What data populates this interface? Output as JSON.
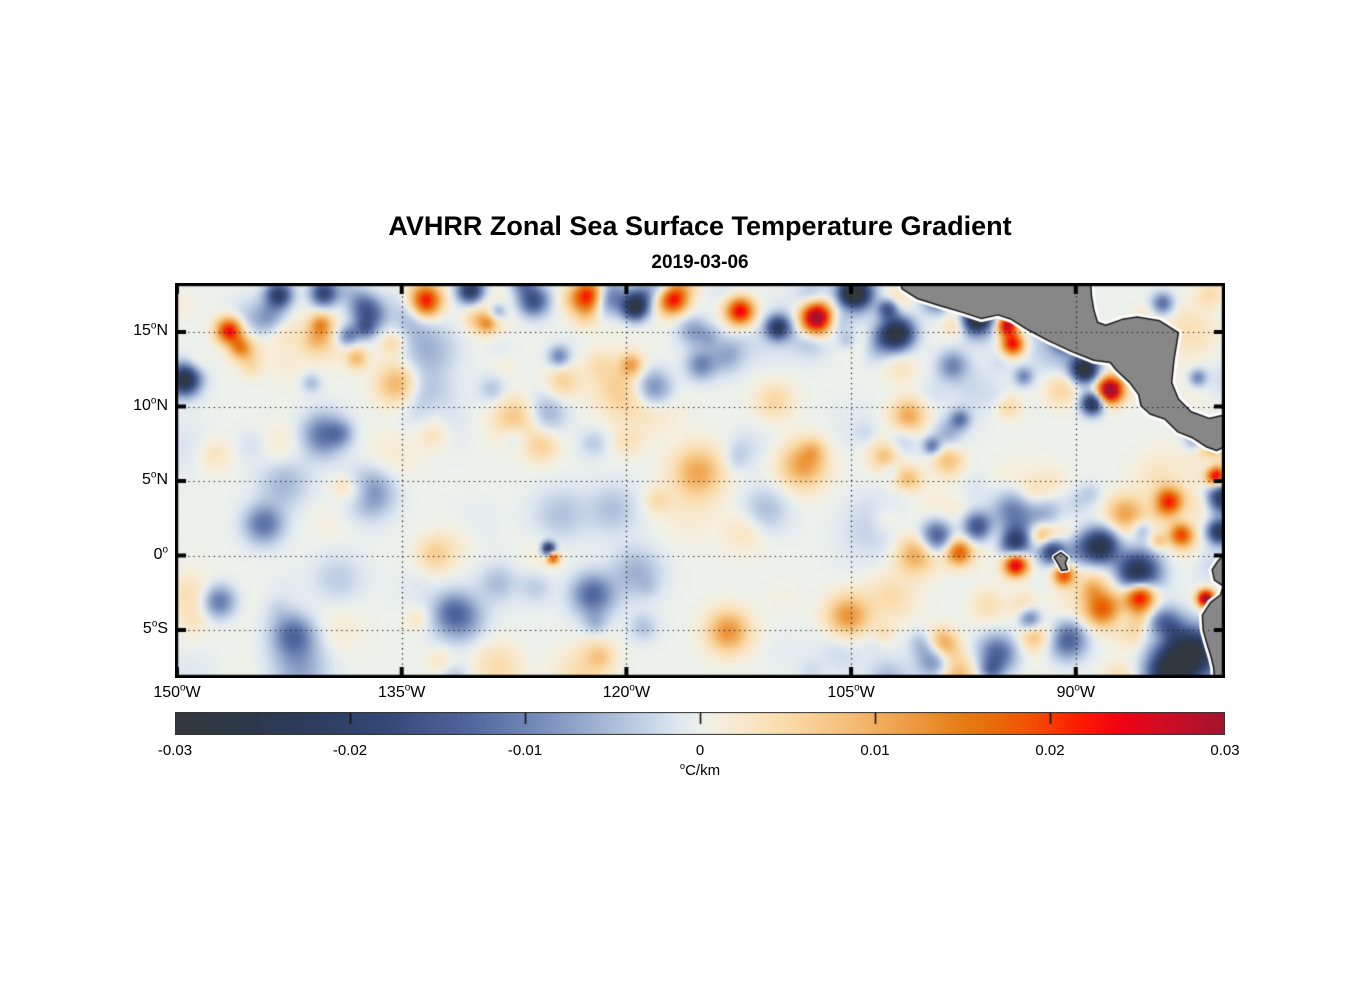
{
  "title": "AVHRR Zonal Sea Surface Temperature Gradient",
  "subtitle": "2019-03-06",
  "chart_data": {
    "type": "heatmap",
    "title": "AVHRR Zonal Sea Surface Temperature Gradient",
    "subtitle": "2019-03-06",
    "variable": "zonal sea surface temperature gradient",
    "deg_symbol": "o",
    "units_text": "C/km",
    "lon_range_deg": [
      -150,
      -79.9
    ],
    "lat_range_deg": [
      -8.2,
      18.3
    ],
    "grid": {
      "style": "dotted",
      "lat_lines": [
        15,
        10,
        5,
        0,
        -5
      ],
      "lon_lines": [
        -135,
        -120,
        -105,
        -90
      ]
    },
    "lat_ticks": [
      {
        "value": 15,
        "num": "15",
        "hemi": "N"
      },
      {
        "value": 10,
        "num": "10",
        "hemi": "N"
      },
      {
        "value": 5,
        "num": "5",
        "hemi": "N"
      },
      {
        "value": 0,
        "num": "0",
        "hemi": ""
      },
      {
        "value": -5,
        "num": "5",
        "hemi": "S"
      }
    ],
    "lon_ticks": [
      {
        "value": -150,
        "num": "150",
        "hemi": "W"
      },
      {
        "value": -135,
        "num": "135",
        "hemi": "W"
      },
      {
        "value": -120,
        "num": "120",
        "hemi": "W"
      },
      {
        "value": -105,
        "num": "105",
        "hemi": "W"
      },
      {
        "value": -90,
        "num": "90",
        "hemi": "W"
      }
    ],
    "colorbar": {
      "min": -0.03,
      "max": 0.03,
      "tick_values": [
        -0.03,
        -0.02,
        -0.01,
        0,
        0.01,
        0.02,
        0.03
      ],
      "tick_labels": [
        "-0.03",
        "-0.02",
        "-0.01",
        "0",
        "0.01",
        "0.02",
        "0.03"
      ],
      "inner_tick_values": [
        -0.02,
        -0.01,
        0,
        0.01,
        0.02
      ]
    },
    "colormap": [
      [
        0.0,
        "#33383e"
      ],
      [
        0.06,
        "#2e3849"
      ],
      [
        0.13,
        "#2d3c5e"
      ],
      [
        0.2,
        "#354977"
      ],
      [
        0.28,
        "#50669d"
      ],
      [
        0.34,
        "#7289b7"
      ],
      [
        0.4,
        "#9fb2d2"
      ],
      [
        0.45,
        "#c6d4e8"
      ],
      [
        0.48,
        "#e0e8f1"
      ],
      [
        0.5,
        "#ecf1ec"
      ],
      [
        0.52,
        "#f6eedd"
      ],
      [
        0.56,
        "#fae3bd"
      ],
      [
        0.6,
        "#f9d49c"
      ],
      [
        0.65,
        "#f4ba71"
      ],
      [
        0.7,
        "#ee9c44"
      ],
      [
        0.75,
        "#e57d14"
      ],
      [
        0.78,
        "#e96c09"
      ],
      [
        0.82,
        "#f44c04"
      ],
      [
        0.86,
        "#fd1d01"
      ],
      [
        0.9,
        "#f20313"
      ],
      [
        0.94,
        "#d30d24"
      ],
      [
        1.0,
        "#a4142e"
      ]
    ],
    "colors": {
      "land": "#878787",
      "coastline": "#1a1a1a",
      "coast_fringe": "#ffffff",
      "frame": "#000000",
      "gridline": "#1a1a1a",
      "background": "#ffffff"
    },
    "features": [
      {
        "name": "tehuantepec-jet-core",
        "lon": -94.6,
        "lat": 15.5,
        "v": 0.035,
        "s": 0.5
      },
      {
        "name": "tehuantepec-jet-tail",
        "lon": -94.2,
        "lat": 14.2,
        "v": 0.026,
        "s": 0.55
      },
      {
        "name": "tehuantepec-navy-west",
        "lon": -96.6,
        "lat": 15.9,
        "v": -0.027,
        "s": 0.55
      },
      {
        "name": "mexico-coast-navy",
        "lon": -101.9,
        "lat": 14.9,
        "v": -0.029,
        "s": 0.75
      },
      {
        "name": "mexico-coast-navy2",
        "lon": -102.5,
        "lat": 16.6,
        "v": -0.022,
        "s": 0.5
      },
      {
        "name": "oaxaca-orange",
        "lon": -98.0,
        "lat": 17.4,
        "v": 0.02,
        "s": 0.5
      },
      {
        "name": "papagayo-core",
        "lon": -87.7,
        "lat": 11.1,
        "v": 0.036,
        "s": 0.6
      },
      {
        "name": "papagayo-navy-nw",
        "lon": -89.4,
        "lat": 12.5,
        "v": -0.031,
        "s": 0.6
      },
      {
        "name": "papagayo-navy-s",
        "lon": -88.9,
        "lat": 10.2,
        "v": -0.026,
        "s": 0.5
      },
      {
        "name": "guatemala-navy",
        "lon": -90.7,
        "lat": 14.7,
        "v": -0.027,
        "s": 0.55
      },
      {
        "name": "guatemala-orange",
        "lon": -91.1,
        "lat": 15.2,
        "v": 0.024,
        "s": 0.35
      },
      {
        "name": "top-navy-104",
        "lon": -104.6,
        "lat": 17.6,
        "v": -0.025,
        "s": 0.65
      },
      {
        "name": "top-orange-107",
        "lon": -107.4,
        "lat": 15.9,
        "v": 0.028,
        "s": 0.75
      },
      {
        "name": "top-navy-110",
        "lon": -109.9,
        "lat": 15.3,
        "v": -0.021,
        "s": 0.55
      },
      {
        "name": "top-orange-112",
        "lon": -112.4,
        "lat": 16.4,
        "v": 0.026,
        "s": 0.65
      },
      {
        "name": "top-orange-117",
        "lon": -116.9,
        "lat": 17.2,
        "v": 0.027,
        "s": 0.7
      },
      {
        "name": "top-navy-119",
        "lon": -119.4,
        "lat": 16.7,
        "v": -0.028,
        "s": 0.6
      },
      {
        "name": "top-orange-122",
        "lon": -122.4,
        "lat": 17.4,
        "v": 0.029,
        "s": 0.75
      },
      {
        "name": "top-navy-126",
        "lon": -126.2,
        "lat": 17.1,
        "v": -0.017,
        "s": 0.7
      },
      {
        "name": "top-navy-130",
        "lon": -130.4,
        "lat": 17.8,
        "v": -0.023,
        "s": 0.6
      },
      {
        "name": "top-orange-133",
        "lon": -133.5,
        "lat": 17.1,
        "v": 0.028,
        "s": 0.75
      },
      {
        "name": "top-navy-137",
        "lon": -137.2,
        "lat": 16.2,
        "v": -0.015,
        "s": 0.8
      },
      {
        "name": "top-navy-140",
        "lon": -140.2,
        "lat": 17.6,
        "v": -0.019,
        "s": 0.6
      },
      {
        "name": "top-navy-143",
        "lon": -143.2,
        "lat": 17.5,
        "v": -0.021,
        "s": 0.6
      },
      {
        "name": "top-orange-146",
        "lon": -146.5,
        "lat": 15.1,
        "v": 0.025,
        "s": 0.6
      },
      {
        "name": "left-edge-navy",
        "lon": -149.5,
        "lat": 11.8,
        "v": -0.028,
        "s": 0.7
      },
      {
        "name": "tiw-navy-99",
        "lon": -99.2,
        "lat": 1.3,
        "v": -0.02,
        "s": 0.8
      },
      {
        "name": "tiw-navy-96",
        "lon": -96.6,
        "lat": 1.9,
        "v": -0.018,
        "s": 0.7
      },
      {
        "name": "tiw-navy-94",
        "lon": -94.1,
        "lat": 0.9,
        "v": -0.022,
        "s": 0.75
      },
      {
        "name": "tiw-navy-91",
        "lon": -91.6,
        "lat": 0.3,
        "v": -0.02,
        "s": 0.6
      },
      {
        "name": "tiw-navy-88",
        "lon": -88.3,
        "lat": 0.6,
        "v": -0.026,
        "s": 0.8
      },
      {
        "name": "tiw-navy-86",
        "lon": -85.9,
        "lat": -1.2,
        "v": -0.028,
        "s": 1.0
      },
      {
        "name": "tiw-orange-97",
        "lon": -97.8,
        "lat": 0.2,
        "v": 0.016,
        "s": 0.6
      },
      {
        "name": "eq-red-94",
        "lon": -94.0,
        "lat": -0.6,
        "v": 0.029,
        "s": 0.55
      },
      {
        "name": "eq-orange-91",
        "lon": -90.8,
        "lat": -1.3,
        "v": 0.02,
        "s": 0.5
      },
      {
        "name": "eq-navy-spot",
        "lon": -125.2,
        "lat": 0.45,
        "v": -0.027,
        "s": 0.3
      },
      {
        "name": "eq-orange-spot",
        "lon": -124.9,
        "lat": -0.15,
        "v": 0.021,
        "s": 0.28
      },
      {
        "name": "guayaquil-red",
        "lon": -81.3,
        "lat": -2.9,
        "v": 0.035,
        "s": 0.4
      },
      {
        "name": "peru-coast-navy",
        "lon": -82.1,
        "lat": -6.6,
        "v": -0.031,
        "s": 1.15
      },
      {
        "name": "peru-coast-navy2",
        "lon": -83.8,
        "lat": -7.8,
        "v": -0.027,
        "s": 1.0
      },
      {
        "name": "peru-offshore-navy",
        "lon": -84.2,
        "lat": -4.9,
        "v": -0.02,
        "s": 0.9
      },
      {
        "name": "colombia-coast-navy",
        "lon": -80.3,
        "lat": 3.9,
        "v": -0.029,
        "s": 0.75
      },
      {
        "name": "ecuador-coast-navy",
        "lon": -80.4,
        "lat": 1.6,
        "v": -0.025,
        "s": 0.55
      },
      {
        "name": "colombia-offshore-orange",
        "lon": -83.8,
        "lat": 3.6,
        "v": 0.023,
        "s": 0.65
      },
      {
        "name": "ecuador-offshore-orange",
        "lon": -83.0,
        "lat": 1.4,
        "v": 0.018,
        "s": 0.55
      },
      {
        "name": "panama-coast-orange",
        "lon": -80.6,
        "lat": 5.3,
        "v": 0.027,
        "s": 0.45
      },
      {
        "name": "galapagos-orange",
        "lon": -85.7,
        "lat": -2.6,
        "v": 0.02,
        "s": 0.65
      },
      {
        "name": "south-orange-88",
        "lon": -88.2,
        "lat": -3.6,
        "v": 0.016,
        "s": 0.8
      },
      {
        "name": "south-navy-90",
        "lon": -90.6,
        "lat": -5.6,
        "v": -0.016,
        "s": 0.9
      },
      {
        "name": "south-navy-95",
        "lon": -95.2,
        "lat": -6.6,
        "v": -0.014,
        "s": 0.9
      },
      {
        "name": "caribbean-navy",
        "lon": -84.2,
        "lat": 16.9,
        "v": -0.013,
        "s": 0.5
      },
      {
        "name": "mid-orange-135",
        "lon": -135.2,
        "lat": 11.5,
        "v": 0.012,
        "s": 1.0
      },
      {
        "name": "mid-orange-127",
        "lon": -127.2,
        "lat": 9.2,
        "v": 0.012,
        "s": 1.1
      },
      {
        "name": "mid-navy-118",
        "lon": -118.2,
        "lat": 11.2,
        "v": -0.013,
        "s": 0.9
      },
      {
        "name": "mid-navy-140",
        "lon": -140.2,
        "lat": 8.1,
        "v": -0.012,
        "s": 1.0
      },
      {
        "name": "mid-navy-137",
        "lon": -137.2,
        "lat": 4.2,
        "v": -0.011,
        "s": 1.1
      },
      {
        "name": "mid-navy-144",
        "lon": -144.2,
        "lat": 2.1,
        "v": -0.012,
        "s": 0.9
      },
      {
        "name": "sw-navy-147",
        "lon": -147.2,
        "lat": -3.1,
        "v": -0.014,
        "s": 0.8
      },
      {
        "name": "sw-navy-142",
        "lon": -142.2,
        "lat": -5.3,
        "v": -0.013,
        "s": 1.0
      },
      {
        "name": "s-navy-131",
        "lon": -131.2,
        "lat": -4.1,
        "v": -0.012,
        "s": 1.1
      },
      {
        "name": "s-navy-122",
        "lon": -122.2,
        "lat": -2.7,
        "v": -0.012,
        "s": 1.0
      },
      {
        "name": "s-orange-113",
        "lon": -113.2,
        "lat": -5.1,
        "v": 0.013,
        "s": 1.0
      },
      {
        "name": "s-orange-105",
        "lon": -105.2,
        "lat": -4.1,
        "v": 0.013,
        "s": 1.0
      },
      {
        "name": "s-navy-99",
        "lon": -99.2,
        "lat": -7.1,
        "v": -0.013,
        "s": 0.9
      },
      {
        "name": "mid-orange-108",
        "lon": -108.2,
        "lat": 6.1,
        "v": 0.012,
        "s": 1.1
      },
      {
        "name": "mid-orange-115",
        "lon": -115.2,
        "lat": 5.6,
        "v": 0.011,
        "s": 1.2
      }
    ],
    "noise": {
      "seed": 20190306,
      "layers": [
        {
          "n": 170,
          "amp": 0.0065,
          "sigma": [
            0.45,
            1.4
          ],
          "lon": [
            -150.4,
            -79.8
          ],
          "lat": [
            -8.4,
            18.4
          ]
        },
        {
          "n": 60,
          "amp": 0.011,
          "sigma": [
            0.4,
            0.9
          ],
          "lon": [
            -150.4,
            -95.0
          ],
          "lat": [
            12.5,
            18.4
          ]
        },
        {
          "n": 55,
          "amp": 0.012,
          "sigma": [
            0.4,
            1.0
          ],
          "lon": [
            -103.0,
            -79.8
          ],
          "lat": [
            -8.4,
            13.0
          ]
        }
      ]
    },
    "land": {
      "central_america": [
        [
          -101.9,
          19.0
        ],
        [
          -101.6,
          17.9
        ],
        [
          -100.6,
          17.25
        ],
        [
          -99.0,
          16.75
        ],
        [
          -97.5,
          16.3
        ],
        [
          -96.3,
          15.9
        ],
        [
          -95.2,
          16.15
        ],
        [
          -94.3,
          15.85
        ],
        [
          -93.2,
          15.15
        ],
        [
          -91.8,
          14.4
        ],
        [
          -90.3,
          13.7
        ],
        [
          -88.8,
          13.1
        ],
        [
          -87.7,
          12.95
        ],
        [
          -87.3,
          12.45
        ],
        [
          -86.4,
          11.6
        ],
        [
          -85.8,
          10.8
        ],
        [
          -85.65,
          10.05
        ],
        [
          -85.05,
          9.5
        ],
        [
          -84.05,
          9.15
        ],
        [
          -83.2,
          8.3
        ],
        [
          -82.2,
          7.9
        ],
        [
          -81.3,
          7.3
        ],
        [
          -80.6,
          7.05
        ],
        [
          -79.4,
          7.6
        ],
        [
          -79.4,
          9.6
        ],
        [
          -81.1,
          9.2
        ],
        [
          -82.3,
          9.65
        ],
        [
          -83.15,
          10.5
        ],
        [
          -83.6,
          11.6
        ],
        [
          -83.45,
          13.1
        ],
        [
          -83.15,
          14.95
        ],
        [
          -84.4,
          15.75
        ],
        [
          -85.9,
          16.0
        ],
        [
          -86.9,
          15.85
        ],
        [
          -88.0,
          15.45
        ],
        [
          -88.55,
          15.65
        ],
        [
          -88.8,
          16.5
        ],
        [
          -88.95,
          17.4
        ],
        [
          -89.05,
          19.0
        ]
      ],
      "south_america": [
        [
          -79.4,
          0.4
        ],
        [
          -80.1,
          0.05
        ],
        [
          -80.5,
          -0.35
        ],
        [
          -80.9,
          -0.95
        ],
        [
          -80.75,
          -1.65
        ],
        [
          -80.15,
          -2.05
        ],
        [
          -80.35,
          -2.65
        ],
        [
          -81.0,
          -3.15
        ],
        [
          -81.55,
          -4.0
        ],
        [
          -81.5,
          -5.0
        ],
        [
          -81.25,
          -5.9
        ],
        [
          -81.0,
          -6.7
        ],
        [
          -80.8,
          -7.5
        ],
        [
          -80.7,
          -9.0
        ],
        [
          -79.4,
          -9.0
        ]
      ],
      "galapagos": [
        [
          -91.45,
          -0.1
        ],
        [
          -91.0,
          0.2
        ],
        [
          -90.55,
          -0.15
        ],
        [
          -90.7,
          -0.5
        ],
        [
          -90.55,
          -0.95
        ],
        [
          -90.95,
          -1.0
        ],
        [
          -91.15,
          -0.6
        ]
      ]
    }
  }
}
